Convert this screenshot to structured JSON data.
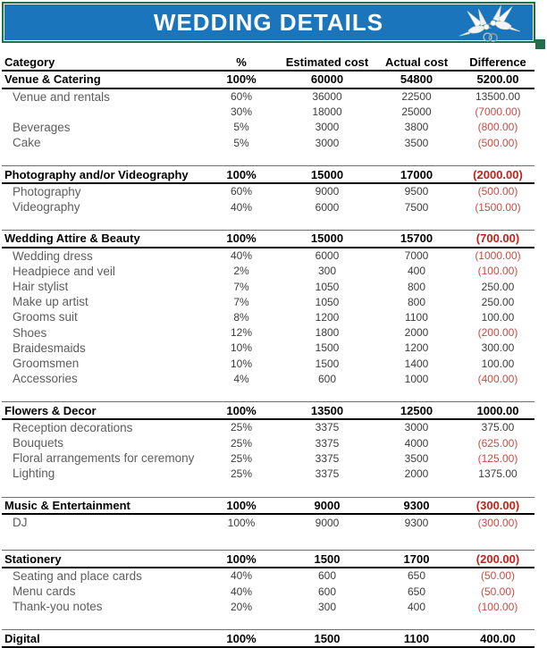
{
  "banner": {
    "title": "WEDDING DETAILS",
    "doves_icon": "two-doves-with-wedding-rings",
    "bg_color": "#1A75BC",
    "border_color": "#1F7048"
  },
  "colors": {
    "negative_value_red": "#cb4a42",
    "section_negative_red": "#c0221a",
    "item_text_gray": "#5d5d5d"
  },
  "table": {
    "columns": [
      "Category",
      "%",
      "Estimated cost",
      "Actual cost",
      "Difference"
    ],
    "sections": [
      {
        "name": "Venue & Catering",
        "percent": "100%",
        "estimated": "60000",
        "actual": "54800",
        "difference": "5200.00",
        "rows": [
          {
            "name": "Venue and rentals",
            "percent": "60%",
            "estimated": "36000",
            "actual": "22500",
            "difference": "13500.00"
          },
          {
            "name": "",
            "percent": "30%",
            "estimated": "18000",
            "actual": "25000",
            "difference": "(7000.00)"
          },
          {
            "name": "Beverages",
            "percent": "5%",
            "estimated": "3000",
            "actual": "3800",
            "difference": "(800.00)"
          },
          {
            "name": "Cake",
            "percent": "5%",
            "estimated": "3000",
            "actual": "3500",
            "difference": "(500.00)"
          }
        ]
      },
      {
        "name": "Photography and/or Videography",
        "percent": "100%",
        "estimated": "15000",
        "actual": "17000",
        "difference": "(2000.00)",
        "rows": [
          {
            "name": "Photography",
            "percent": "60%",
            "estimated": "9000",
            "actual": "9500",
            "difference": "(500.00)"
          },
          {
            "name": "Videography",
            "percent": "40%",
            "estimated": "6000",
            "actual": "7500",
            "difference": "(1500.00)"
          }
        ]
      },
      {
        "name": "Wedding Attire & Beauty",
        "percent": "100%",
        "estimated": "15000",
        "actual": "15700",
        "difference": "(700.00)",
        "rows": [
          {
            "name": "Wedding dress",
            "percent": "40%",
            "estimated": "6000",
            "actual": "7000",
            "difference": "(1000.00)"
          },
          {
            "name": "Headpiece and veil",
            "percent": "2%",
            "estimated": "300",
            "actual": "400",
            "difference": "(100.00)"
          },
          {
            "name": "Hair stylist",
            "percent": "7%",
            "estimated": "1050",
            "actual": "800",
            "difference": "250.00"
          },
          {
            "name": "Make up artist",
            "percent": "7%",
            "estimated": "1050",
            "actual": "800",
            "difference": "250.00"
          },
          {
            "name": "Grooms suit",
            "percent": "8%",
            "estimated": "1200",
            "actual": "1100",
            "difference": "100.00"
          },
          {
            "name": "Shoes",
            "percent": "12%",
            "estimated": "1800",
            "actual": "2000",
            "difference": "(200.00)"
          },
          {
            "name": "Braidesmaids",
            "percent": "10%",
            "estimated": "1500",
            "actual": "1200",
            "difference": "300.00"
          },
          {
            "name": "Groomsmen",
            "percent": "10%",
            "estimated": "1500",
            "actual": "1400",
            "difference": "100.00"
          },
          {
            "name": "Accessories",
            "percent": "4%",
            "estimated": "600",
            "actual": "1000",
            "difference": "(400.00)"
          }
        ]
      },
      {
        "name": "Flowers & Decor",
        "percent": "100%",
        "estimated": "13500",
        "actual": "12500",
        "difference": "1000.00",
        "rows": [
          {
            "name": "Reception decorations",
            "percent": "25%",
            "estimated": "3375",
            "actual": "3000",
            "difference": "375.00"
          },
          {
            "name": "Bouquets",
            "percent": "25%",
            "estimated": "3375",
            "actual": "4000",
            "difference": "(625.00)"
          },
          {
            "name": "Floral arrangements for ceremony",
            "percent": "25%",
            "estimated": "3375",
            "actual": "3500",
            "difference": "(125.00)"
          },
          {
            "name": "Lighting",
            "percent": "25%",
            "estimated": "3375",
            "actual": "2000",
            "difference": "1375.00"
          }
        ]
      },
      {
        "name": "Music & Entertainment",
        "percent": "100%",
        "estimated": "9000",
        "actual": "9300",
        "difference": "(300.00)",
        "rows": [
          {
            "name": "DJ",
            "percent": "100%",
            "estimated": "9000",
            "actual": "9300",
            "difference": "(300.00)"
          }
        ]
      },
      {
        "name": "Stationery",
        "percent": "100%",
        "estimated": "1500",
        "actual": "1700",
        "difference": "(200.00)",
        "rows": [
          {
            "name": "Seating and place cards",
            "percent": "40%",
            "estimated": "600",
            "actual": "650",
            "difference": "(50.00)"
          },
          {
            "name": "Menu cards",
            "percent": "40%",
            "estimated": "600",
            "actual": "650",
            "difference": "(50.00)"
          },
          {
            "name": "Thank-you notes",
            "percent": "20%",
            "estimated": "300",
            "actual": "400",
            "difference": "(100.00)"
          }
        ]
      },
      {
        "name": "Digital",
        "percent": "100%",
        "estimated": "1500",
        "actual": "1100",
        "difference": "400.00",
        "rows": []
      }
    ]
  }
}
